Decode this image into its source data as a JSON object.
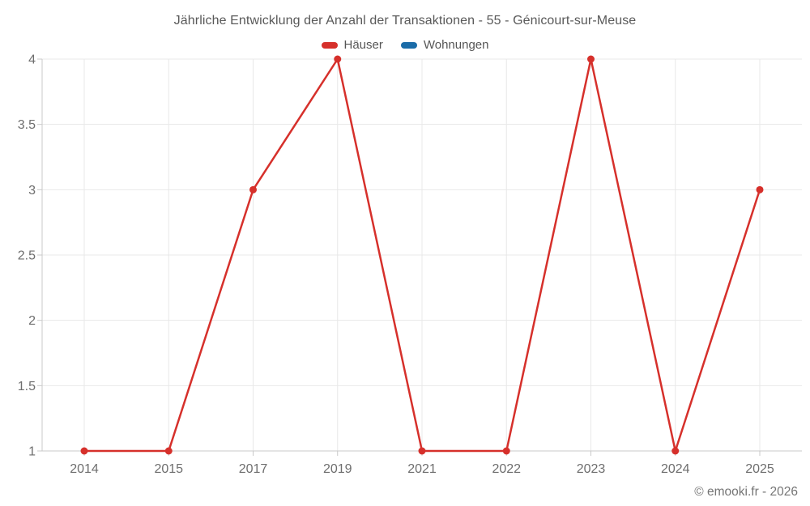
{
  "title": "Jährliche Entwicklung der Anzahl der Transaktionen - 55 - Génicourt-sur-Meuse",
  "footer": "© emooki.fr - 2026",
  "colors": {
    "series_hauser": "#d6302b",
    "series_wohnungen": "#1b6ca8",
    "grid": "#e8e8e8",
    "axis": "#c9c9c9",
    "title_text": "#595959",
    "axis_text": "#6e6e6e",
    "footer_text": "#757575"
  },
  "chart_data": {
    "type": "line",
    "title": "Jährliche Entwicklung der Anzahl der Transaktionen - 55 - Génicourt-sur-Meuse",
    "categories": [
      "2014",
      "2015",
      "2017",
      "2019",
      "2021",
      "2022",
      "2023",
      "2024",
      "2025"
    ],
    "series": [
      {
        "name": "Häuser",
        "slug": "hauser",
        "color": "#d6302b",
        "values": [
          1,
          1,
          3,
          4,
          1,
          1,
          4,
          1,
          3
        ]
      },
      {
        "name": "Wohnungen",
        "slug": "wohnungen",
        "color": "#1b6ca8",
        "values": []
      }
    ],
    "xlabel": "",
    "ylabel": "",
    "ylim": [
      1,
      4
    ],
    "yticks": [
      1,
      1.5,
      2,
      2.5,
      3,
      3.5,
      4
    ],
    "grid": true,
    "legend_position": "top"
  }
}
